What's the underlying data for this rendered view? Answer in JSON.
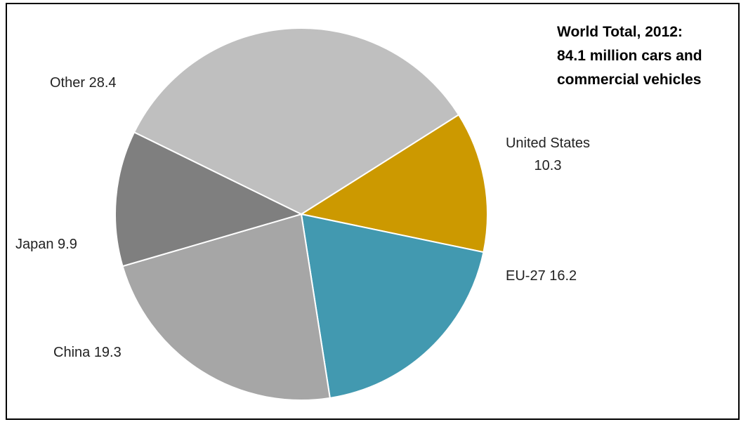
{
  "chart_data": {
    "type": "pie",
    "title_lines": [
      "World Total, 2012:",
      "84.1 million  cars and",
      "commercial vehicles"
    ],
    "units": "million vehicles",
    "start_angle_deg": 57.7,
    "direction": "clockwise",
    "slices": [
      {
        "name": "United States",
        "value": 10.3,
        "color": "#cc9900",
        "label_lines": [
          "United States",
          "10.3"
        ]
      },
      {
        "name": "EU-27",
        "value": 16.2,
        "color": "#4299b0",
        "label_lines": [
          "EU-27  16.2"
        ]
      },
      {
        "name": "China",
        "value": 19.3,
        "color": "#a6a6a6",
        "label_lines": [
          "China  19.3"
        ]
      },
      {
        "name": "Japan",
        "value": 9.9,
        "color": "#7f7f7f",
        "label_lines": [
          "Japan  9.9"
        ]
      },
      {
        "name": "Other",
        "value": 28.4,
        "color": "#bfbfbf",
        "label_lines": [
          "Other  28.4"
        ]
      }
    ]
  }
}
